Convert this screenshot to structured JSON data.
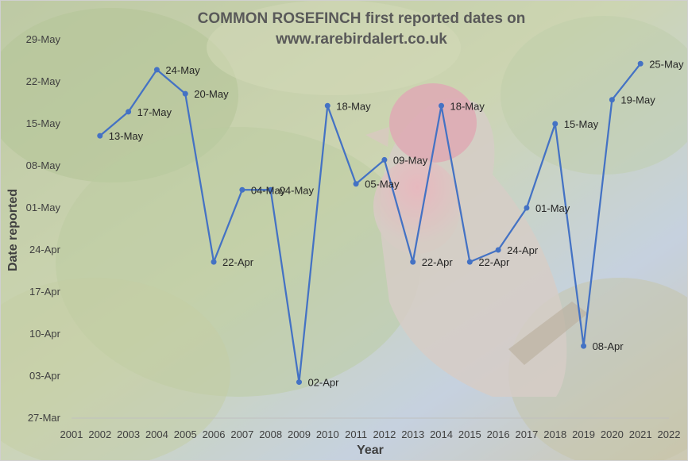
{
  "chart_data": {
    "type": "line",
    "title_line1": "COMMON ROSEFINCH first reported dates on",
    "title_line2": "www.rarebirdalert.co.uk",
    "xlabel": "Year",
    "ylabel": "Date reported",
    "xlim": [
      2001,
      2022
    ],
    "x_ticks": [
      "2001",
      "2002",
      "2003",
      "2004",
      "2005",
      "2006",
      "2007",
      "2008",
      "2009",
      "2010",
      "2011",
      "2012",
      "2013",
      "2014",
      "2015",
      "2016",
      "2017",
      "2018",
      "2019",
      "2020",
      "2021",
      "2022"
    ],
    "y_ticks": [
      "29-May",
      "22-May",
      "15-May",
      "08-May",
      "01-May",
      "24-Apr",
      "17-Apr",
      "10-Apr",
      "03-Apr",
      "27-Mar"
    ],
    "y_tick_dates": [
      "05-29",
      "05-22",
      "05-15",
      "05-08",
      "05-01",
      "04-24",
      "04-17",
      "04-10",
      "04-03",
      "03-27"
    ],
    "ylim": [
      "03-27",
      "05-29"
    ],
    "grid": false,
    "legend": "none",
    "line_color": "#4472C4",
    "background": "photo of a male common rosefinch on a conifer branch, faded",
    "series": [
      {
        "x": [
          2002,
          2003,
          2004,
          2005,
          2006,
          2007,
          2008,
          2009,
          2010,
          2011,
          2012,
          2013,
          2014,
          2015,
          2016,
          2017,
          2018,
          2019,
          2020,
          2021
        ],
        "y": [
          "05-13",
          "05-17",
          "05-24",
          "05-20",
          "04-22",
          "05-04",
          "05-04",
          "04-02",
          "05-18",
          "05-05",
          "05-09",
          "04-22",
          "05-18",
          "04-22",
          "04-24",
          "05-01",
          "05-15",
          "04-08",
          "05-19",
          "05-25"
        ],
        "labels": [
          "13-May",
          "17-May",
          "24-May",
          "20-May",
          "22-Apr",
          "04-May",
          "04-May",
          "02-Apr",
          "18-May",
          "05-May",
          "09-May",
          "22-Apr",
          "18-May",
          "22-Apr",
          "24-Apr",
          "01-May",
          "15-May",
          "08-Apr",
          "19-May",
          "25-May"
        ]
      }
    ]
  }
}
